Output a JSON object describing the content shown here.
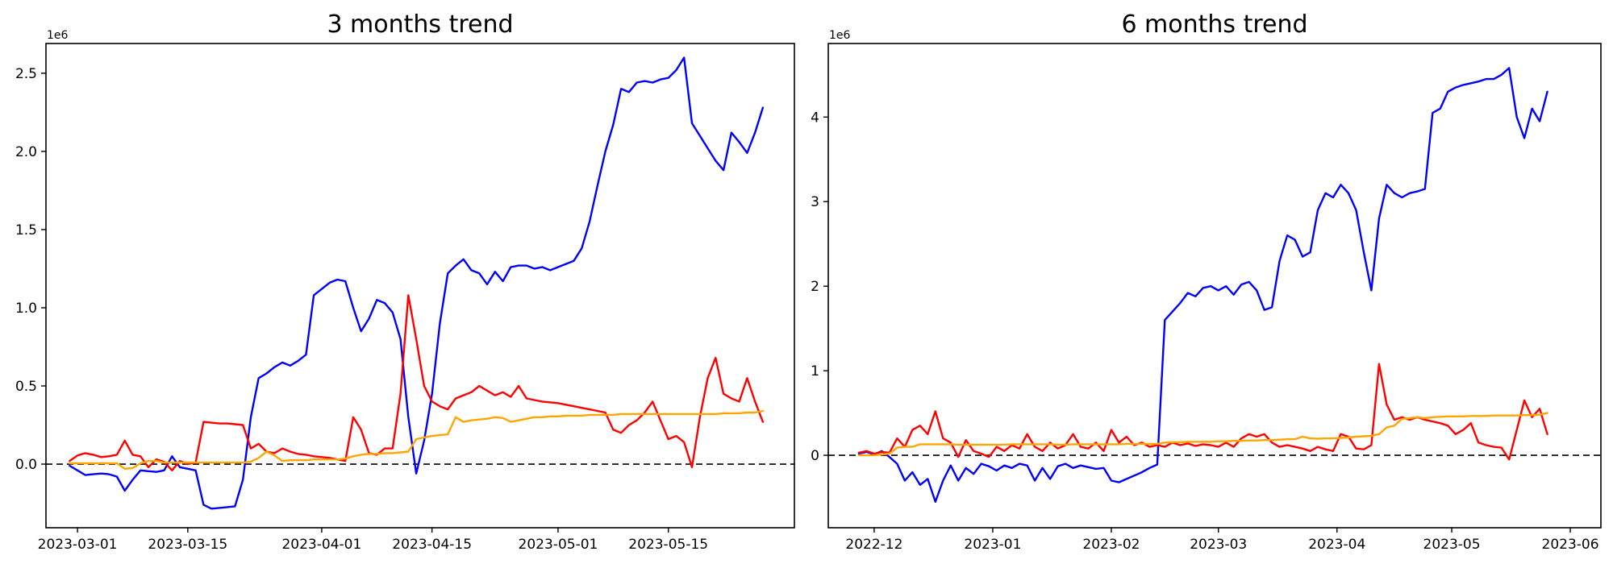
{
  "figure": {
    "background": "#ffffff",
    "accent_colors": {
      "blue": "#0000ff",
      "red": "#ff0000",
      "orange": "#ffa500",
      "axis": "#000000"
    }
  },
  "chart_data": [
    {
      "type": "line",
      "title": "3 months trend",
      "y_offset_label": "1e6",
      "grid": false,
      "legend": "none",
      "xlim": [
        "2023-02-25",
        "2023-05-31"
      ],
      "ylim": [
        -0.407,
        2.69
      ],
      "y_unit": 1000000,
      "zero_line": {
        "style": "dashed",
        "color": "#000000"
      },
      "y_ticks": [
        {
          "value": 0.0,
          "label": "0.0"
        },
        {
          "value": 0.5,
          "label": "0.5"
        },
        {
          "value": 1.0,
          "label": "1.0"
        },
        {
          "value": 1.5,
          "label": "1.5"
        },
        {
          "value": 2.0,
          "label": "2.0"
        },
        {
          "value": 2.5,
          "label": "2.5"
        }
      ],
      "x_ticks": [
        {
          "date": "2023-03-01",
          "label": "2023-03-01"
        },
        {
          "date": "2023-03-15",
          "label": "2023-03-15"
        },
        {
          "date": "2023-04-01",
          "label": "2023-04-01"
        },
        {
          "date": "2023-04-15",
          "label": "2023-04-15"
        },
        {
          "date": "2023-05-01",
          "label": "2023-05-01"
        },
        {
          "date": "2023-05-15",
          "label": "2023-05-15"
        }
      ],
      "series": [
        {
          "name": "blue",
          "color": "#0000ff",
          "start": "2023-02-28",
          "step_days": 1,
          "values": [
            -0.01,
            -0.04,
            -0.07,
            -0.065,
            -0.06,
            -0.065,
            -0.08,
            -0.17,
            -0.1,
            -0.04,
            -0.045,
            -0.05,
            -0.04,
            0.05,
            -0.02,
            -0.03,
            -0.04,
            -0.26,
            -0.285,
            -0.28,
            -0.275,
            -0.27,
            -0.1,
            0.3,
            0.55,
            0.58,
            0.62,
            0.65,
            0.63,
            0.66,
            0.7,
            1.08,
            1.12,
            1.16,
            1.18,
            1.17,
            1.0,
            0.85,
            0.93,
            1.05,
            1.03,
            0.97,
            0.8,
            0.3,
            -0.06,
            0.15,
            0.45,
            0.9,
            1.22,
            1.27,
            1.31,
            1.24,
            1.22,
            1.15,
            1.23,
            1.17,
            1.26,
            1.27,
            1.27,
            1.25,
            1.26,
            1.24,
            1.26,
            1.28,
            1.3,
            1.38,
            1.55,
            1.78,
            2.0,
            2.17,
            2.4,
            2.38,
            2.44,
            2.45,
            2.44,
            2.46,
            2.47,
            2.52,
            2.6,
            2.18,
            2.1,
            2.02,
            1.94,
            1.88,
            2.12,
            2.06,
            1.99,
            2.12,
            2.28
          ]
        },
        {
          "name": "red",
          "color": "#ff0000",
          "start": "2023-02-28",
          "step_days": 1,
          "values": [
            0.02,
            0.055,
            0.07,
            0.06,
            0.045,
            0.05,
            0.06,
            0.15,
            0.06,
            0.05,
            -0.02,
            0.03,
            0.015,
            -0.04,
            0.02,
            0.0,
            0.01,
            0.27,
            0.265,
            0.26,
            0.26,
            0.255,
            0.25,
            0.1,
            0.13,
            0.08,
            0.07,
            0.1,
            0.08,
            0.065,
            0.06,
            0.05,
            0.045,
            0.04,
            0.03,
            0.02,
            0.3,
            0.22,
            0.07,
            0.06,
            0.1,
            0.1,
            0.45,
            1.08,
            0.8,
            0.5,
            0.4,
            0.37,
            0.35,
            0.42,
            0.44,
            0.46,
            0.5,
            0.47,
            0.44,
            0.46,
            0.43,
            0.5,
            0.42,
            0.41,
            0.4,
            0.395,
            0.39,
            0.38,
            0.37,
            0.36,
            0.35,
            0.34,
            0.33,
            0.22,
            0.2,
            0.25,
            0.28,
            0.33,
            0.4,
            0.28,
            0.16,
            0.18,
            0.14,
            -0.02,
            0.3,
            0.55,
            0.68,
            0.45,
            0.42,
            0.4,
            0.55,
            0.4,
            0.27
          ]
        },
        {
          "name": "orange",
          "color": "#ffa500",
          "start": "2023-02-28",
          "step_days": 1,
          "values": [
            0.005,
            0.005,
            0.005,
            0.005,
            0.005,
            0.005,
            0.005,
            -0.03,
            -0.025,
            0.005,
            0.02,
            0.02,
            0.01,
            0.01,
            0.01,
            0.01,
            0.01,
            0.01,
            0.01,
            0.01,
            0.01,
            0.01,
            0.01,
            0.015,
            0.04,
            0.08,
            0.055,
            0.02,
            0.025,
            0.025,
            0.025,
            0.03,
            0.03,
            0.03,
            0.03,
            0.035,
            0.05,
            0.06,
            0.065,
            0.065,
            0.07,
            0.07,
            0.075,
            0.08,
            0.16,
            0.17,
            0.18,
            0.185,
            0.19,
            0.3,
            0.27,
            0.28,
            0.285,
            0.29,
            0.3,
            0.295,
            0.27,
            0.28,
            0.29,
            0.3,
            0.3,
            0.305,
            0.305,
            0.31,
            0.31,
            0.31,
            0.315,
            0.315,
            0.315,
            0.315,
            0.32,
            0.32,
            0.32,
            0.32,
            0.32,
            0.32,
            0.32,
            0.32,
            0.32,
            0.32,
            0.32,
            0.32,
            0.32,
            0.325,
            0.325,
            0.325,
            0.33,
            0.33,
            0.34
          ]
        }
      ]
    },
    {
      "type": "line",
      "title": "6 months trend",
      "y_offset_label": "1e6",
      "grid": false,
      "legend": "none",
      "xlim": [
        "2022-11-19",
        "2023-06-09"
      ],
      "ylim": [
        -0.857,
        4.87
      ],
      "y_unit": 1000000,
      "zero_line": {
        "style": "dashed",
        "color": "#000000"
      },
      "y_ticks": [
        {
          "value": 0,
          "label": "0"
        },
        {
          "value": 1,
          "label": "1"
        },
        {
          "value": 2,
          "label": "2"
        },
        {
          "value": 3,
          "label": "3"
        },
        {
          "value": 4,
          "label": "4"
        }
      ],
      "x_ticks": [
        {
          "date": "2022-12-01",
          "label": "2022-12"
        },
        {
          "date": "2023-01-01",
          "label": "2023-01"
        },
        {
          "date": "2023-02-01",
          "label": "2023-02"
        },
        {
          "date": "2023-03-01",
          "label": "2023-03"
        },
        {
          "date": "2023-04-01",
          "label": "2023-04"
        },
        {
          "date": "2023-05-01",
          "label": "2023-05"
        },
        {
          "date": "2023-06-01",
          "label": "2023-06"
        }
      ],
      "series": [
        {
          "name": "blue",
          "color": "#0000ff",
          "start": "2022-11-27",
          "step_days": 2,
          "values": [
            0.02,
            0.04,
            0.01,
            0.05,
            -0.02,
            -0.1,
            -0.3,
            -0.2,
            -0.35,
            -0.28,
            -0.55,
            -0.3,
            -0.12,
            -0.3,
            -0.15,
            -0.22,
            -0.1,
            -0.13,
            -0.18,
            -0.12,
            -0.15,
            -0.1,
            -0.12,
            -0.3,
            -0.15,
            -0.28,
            -0.13,
            -0.1,
            -0.15,
            -0.12,
            -0.14,
            -0.16,
            -0.15,
            -0.3,
            -0.32,
            -0.28,
            -0.24,
            -0.2,
            -0.15,
            -0.11,
            1.6,
            1.7,
            1.8,
            1.92,
            1.88,
            1.98,
            2.0,
            1.95,
            2.0,
            1.9,
            2.02,
            2.05,
            1.95,
            1.72,
            1.75,
            2.3,
            2.6,
            2.55,
            2.35,
            2.4,
            2.9,
            3.1,
            3.05,
            3.2,
            3.1,
            2.9,
            2.4,
            1.95,
            2.8,
            3.2,
            3.1,
            3.05,
            3.1,
            3.12,
            3.15,
            4.05,
            4.1,
            4.3,
            4.35,
            4.38,
            4.4,
            4.42,
            4.45,
            4.45,
            4.5,
            4.58,
            4.0,
            3.75,
            4.1,
            3.95,
            4.3
          ]
        },
        {
          "name": "red",
          "color": "#ff0000",
          "start": "2022-11-27",
          "step_days": 2,
          "values": [
            0.03,
            0.05,
            0.02,
            0.04,
            0.03,
            0.2,
            0.1,
            0.3,
            0.35,
            0.25,
            0.52,
            0.2,
            0.15,
            -0.02,
            0.18,
            0.05,
            0.02,
            -0.02,
            0.1,
            0.05,
            0.12,
            0.08,
            0.25,
            0.1,
            0.05,
            0.15,
            0.08,
            0.12,
            0.25,
            0.1,
            0.08,
            0.15,
            0.05,
            0.3,
            0.15,
            0.22,
            0.12,
            0.15,
            0.1,
            0.12,
            0.1,
            0.15,
            0.12,
            0.14,
            0.11,
            0.13,
            0.12,
            0.1,
            0.15,
            0.1,
            0.2,
            0.25,
            0.22,
            0.25,
            0.15,
            0.1,
            0.12,
            0.1,
            0.08,
            0.05,
            0.1,
            0.07,
            0.05,
            0.25,
            0.22,
            0.08,
            0.07,
            0.12,
            1.08,
            0.6,
            0.42,
            0.45,
            0.42,
            0.45,
            0.42,
            0.4,
            0.38,
            0.35,
            0.25,
            0.3,
            0.38,
            0.15,
            0.12,
            0.1,
            0.09,
            -0.05,
            0.3,
            0.65,
            0.45,
            0.55,
            0.25
          ]
        },
        {
          "name": "orange",
          "color": "#ffa500",
          "start": "2022-11-27",
          "step_days": 2,
          "values": [
            0.0,
            0.0,
            0.0,
            0.01,
            0.02,
            0.09,
            0.1,
            0.1,
            0.13,
            0.13,
            0.13,
            0.13,
            0.13,
            0.125,
            0.125,
            0.125,
            0.125,
            0.125,
            0.125,
            0.125,
            0.13,
            0.13,
            0.13,
            0.13,
            0.13,
            0.13,
            0.125,
            0.125,
            0.13,
            0.13,
            0.13,
            0.13,
            0.13,
            0.13,
            0.13,
            0.135,
            0.135,
            0.135,
            0.135,
            0.135,
            0.15,
            0.155,
            0.155,
            0.16,
            0.16,
            0.16,
            0.16,
            0.165,
            0.165,
            0.17,
            0.17,
            0.175,
            0.175,
            0.18,
            0.18,
            0.185,
            0.19,
            0.19,
            0.22,
            0.2,
            0.195,
            0.2,
            0.2,
            0.205,
            0.21,
            0.22,
            0.225,
            0.23,
            0.25,
            0.33,
            0.35,
            0.43,
            0.44,
            0.45,
            0.44,
            0.45,
            0.455,
            0.46,
            0.46,
            0.46,
            0.465,
            0.465,
            0.465,
            0.47,
            0.47,
            0.47,
            0.47,
            0.475,
            0.475,
            0.48,
            0.5
          ]
        }
      ]
    }
  ]
}
